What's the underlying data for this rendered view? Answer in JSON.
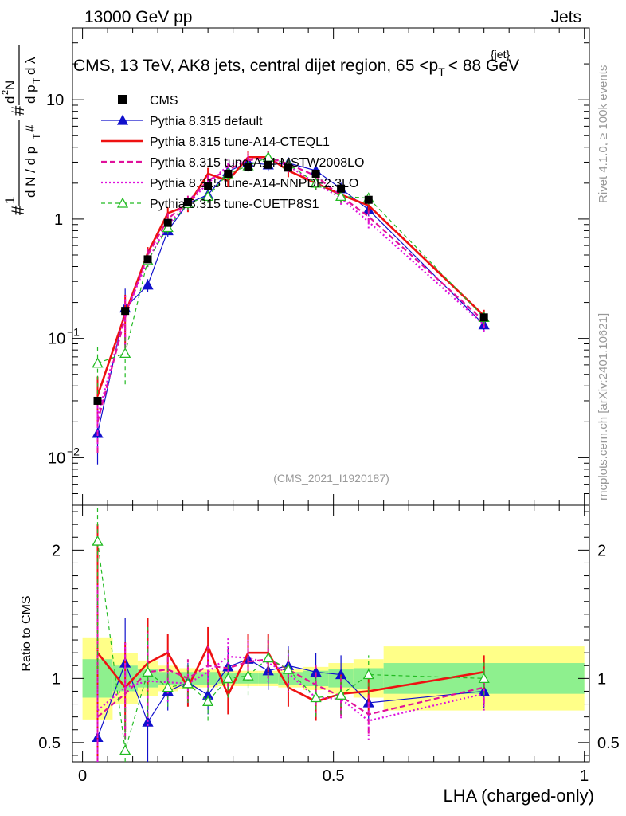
{
  "header": {
    "left": "13000 GeV pp",
    "right": "Jets",
    "title": "CMS, 13 TeV, AK8 jets, central dijet region, 65 <p",
    "title_sup": "{jet}",
    "title_sub": "T",
    "title_end": "< 88 GeV"
  },
  "side_labels": {
    "rivet": "Rivet 4.1.0, ≥ 100k events",
    "mcplots": "mcplots.cern.ch [arXiv:2401.10621]"
  },
  "analysis_label": "(CMS_2021_I1920187)",
  "y_label_main": "# 1/(d N / d p_T #) d²N/(d p_T dλ)",
  "chart_data": [
    {
      "type": "line",
      "panel": "main",
      "xlabel": "LHA (charged-only)",
      "ylabel": "#1/(dN/dp_T#) d²N/(dp_T dλ)",
      "yscale": "log",
      "xlim": [
        -0.02,
        1.01
      ],
      "ylim": [
        0.004,
        40
      ],
      "yticks": [
        {
          "v": 0.01,
          "base": "10",
          "exp": "−2"
        },
        {
          "v": 0.1,
          "base": "10",
          "exp": "−1"
        },
        {
          "v": 1,
          "base": "1",
          "exp": ""
        },
        {
          "v": 10,
          "base": "10",
          "exp": ""
        }
      ],
      "x": [
        0.03,
        0.085,
        0.13,
        0.17,
        0.21,
        0.25,
        0.29,
        0.33,
        0.37,
        0.41,
        0.465,
        0.515,
        0.57,
        0.8
      ],
      "legend": [
        {
          "name": "CMS",
          "color": "#000000",
          "style": "marker",
          "marker": "square"
        },
        {
          "name": "Pythia 8.315 default",
          "color": "#1010cc",
          "style": "solid",
          "marker": "triangle-filled"
        },
        {
          "name": "Pythia 8.315 tune-A14-CTEQL1",
          "color": "#ee1111",
          "style": "solid-thick",
          "marker": "none"
        },
        {
          "name": "Pythia 8.315 tune-A14-MSTW2008LO",
          "color": "#e0109a",
          "style": "dashed",
          "marker": "none"
        },
        {
          "name": "Pythia 8.315 tune-A14-NNPDF2.3LO",
          "color": "#dd10dd",
          "style": "dotted",
          "marker": "none"
        },
        {
          "name": "Pythia 8.315 tune-CUETP8S1",
          "color": "#22bb22",
          "style": "dashed-thin",
          "marker": "triangle-open"
        }
      ],
      "series": [
        {
          "name": "CMS",
          "values": [
            0.03,
            0.17,
            0.46,
            0.93,
            1.4,
            1.9,
            2.4,
            2.75,
            2.85,
            2.7,
            2.4,
            1.8,
            1.45,
            0.15
          ]
        },
        {
          "name": "Pythia 8.315 default",
          "values": [
            0.016,
            0.18,
            0.28,
            0.8,
            1.35,
            1.6,
            2.5,
            3.0,
            2.85,
            2.95,
            2.55,
            1.8,
            1.2,
            0.13
          ]
        },
        {
          "name": "Pythia 8.315 tune-A14-CTEQL1",
          "values": [
            0.033,
            0.16,
            0.52,
            1.12,
            1.3,
            2.4,
            2.1,
            3.3,
            3.3,
            2.55,
            2.0,
            1.6,
            1.3,
            0.155
          ]
        },
        {
          "name": "Pythia 8.315 tune-A14-MSTW2008LO",
          "values": [
            0.02,
            0.15,
            0.5,
            1.0,
            1.4,
            2.1,
            2.6,
            3.1,
            3.3,
            2.9,
            2.3,
            1.55,
            1.05,
            0.14
          ]
        },
        {
          "name": "Pythia 8.315 tune-A14-NNPDF2.3LO",
          "values": [
            0.022,
            0.16,
            0.45,
            0.9,
            1.35,
            2.0,
            2.8,
            3.2,
            3.2,
            2.8,
            2.0,
            1.5,
            0.95,
            0.13
          ]
        },
        {
          "name": "Pythia 8.315 tune-CUETP8S1",
          "values": [
            0.062,
            0.075,
            0.45,
            0.85,
            1.35,
            1.55,
            2.4,
            2.8,
            3.3,
            2.9,
            2.0,
            1.55,
            1.5,
            0.15
          ]
        }
      ]
    },
    {
      "type": "line",
      "panel": "ratio",
      "xlabel": "LHA (charged-only)",
      "ylabel": "Ratio to CMS",
      "xlim": [
        -0.02,
        1.01
      ],
      "ylim": [
        0.35,
        2.35
      ],
      "yticks": [
        0.5,
        1,
        2
      ],
      "xticks": [
        {
          "v": 0,
          "label": "0"
        },
        {
          "v": 0.5,
          "label": "0.5"
        },
        {
          "v": 1,
          "label": "1"
        }
      ],
      "bins": [
        [
          0.0,
          0.06
        ],
        [
          0.06,
          0.11
        ],
        [
          0.11,
          0.15
        ],
        [
          0.15,
          0.19
        ],
        [
          0.19,
          0.23
        ],
        [
          0.23,
          0.27
        ],
        [
          0.27,
          0.31
        ],
        [
          0.31,
          0.35
        ],
        [
          0.35,
          0.39
        ],
        [
          0.39,
          0.44
        ],
        [
          0.44,
          0.49
        ],
        [
          0.49,
          0.54
        ],
        [
          0.54,
          0.6
        ],
        [
          0.6,
          1.0
        ]
      ],
      "band_inner": [
        0.15,
        0.1,
        0.07,
        0.05,
        0.05,
        0.05,
        0.04,
        0.04,
        0.04,
        0.05,
        0.06,
        0.07,
        0.08,
        0.12
      ],
      "band_outer": [
        0.32,
        0.2,
        0.14,
        0.1,
        0.08,
        0.07,
        0.06,
        0.06,
        0.06,
        0.07,
        0.09,
        0.12,
        0.15,
        0.25
      ],
      "x": [
        0.03,
        0.085,
        0.13,
        0.17,
        0.21,
        0.25,
        0.29,
        0.33,
        0.37,
        0.41,
        0.465,
        0.515,
        0.57,
        0.8
      ],
      "series": [
        {
          "name": "Pythia 8.315 default",
          "values": [
            0.54,
            1.12,
            0.66,
            0.9,
            0.97,
            0.87,
            1.09,
            1.15,
            1.06,
            1.1,
            1.05,
            1.03,
            0.81,
            0.9
          ]
        },
        {
          "name": "Pythia 8.315 tune-A14-CTEQL1",
          "values": [
            1.2,
            0.93,
            1.12,
            1.2,
            0.93,
            1.25,
            0.87,
            1.2,
            1.2,
            0.93,
            0.82,
            0.88,
            0.9,
            1.05
          ]
        },
        {
          "name": "Pythia 8.315 tune-A14-MSTW2008LO",
          "values": [
            0.7,
            0.88,
            1.05,
            1.07,
            1.0,
            1.1,
            1.08,
            1.13,
            1.15,
            1.07,
            0.95,
            0.86,
            0.72,
            0.93
          ]
        },
        {
          "name": "Pythia 8.315 tune-A14-NNPDF2.3LO",
          "values": [
            0.75,
            0.93,
            0.98,
            0.97,
            0.96,
            1.05,
            1.17,
            1.16,
            1.12,
            1.04,
            0.85,
            0.84,
            0.67,
            0.88
          ]
        },
        {
          "name": "Pythia 8.315 tune-CUETP8S1",
          "values": [
            2.07,
            0.44,
            1.05,
            0.93,
            0.96,
            0.82,
            1.0,
            1.02,
            1.16,
            1.07,
            0.85,
            0.87,
            1.03,
            1.0
          ]
        }
      ]
    }
  ]
}
